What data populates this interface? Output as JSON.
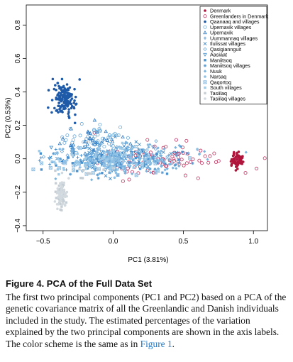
{
  "chart_data": {
    "type": "scatter",
    "xlabel": "PC1 (3.81%)",
    "ylabel": "PC2 (0.53%)",
    "xlim": [
      -0.62,
      1.1
    ],
    "ylim": [
      -0.43,
      0.92
    ],
    "xticks": [
      -0.5,
      0.0,
      0.5,
      1.0
    ],
    "xtick_labels": [
      "−0.5",
      "0.0",
      "0.5",
      "1.0"
    ],
    "yticks": [
      -0.4,
      -0.2,
      0.0,
      0.2,
      0.4,
      0.6,
      0.8
    ],
    "ytick_labels": [
      "−0.4",
      "−0.2",
      "0.0",
      "0.2",
      "0.4",
      "0.6",
      "0.8"
    ],
    "grid": false,
    "legend_position": "top-right",
    "series": [
      {
        "name": "Denmark",
        "marker": "dot",
        "color": "#b0153b",
        "clusters": [
          {
            "cx": 0.88,
            "cy": -0.01,
            "sx": 0.025,
            "sy": 0.022,
            "n": 70
          }
        ]
      },
      {
        "name": "Greenlanders in Denmark",
        "marker": "circle",
        "color": "#c2305e",
        "clusters": [
          {
            "cx": 0.35,
            "cy": 0.0,
            "sx": 0.28,
            "sy": 0.05,
            "n": 85
          }
        ]
      },
      {
        "name": "Qaanaaq and villages",
        "marker": "dot",
        "color": "#1e5aa8",
        "clusters": [
          {
            "cx": -0.35,
            "cy": 0.36,
            "sx": 0.045,
            "sy": 0.05,
            "n": 150
          }
        ]
      },
      {
        "name": "Upernavik villages",
        "marker": "circle",
        "color": "#6aaad8",
        "clusters": [
          {
            "cx": -0.15,
            "cy": 0.13,
            "sx": 0.12,
            "sy": 0.035,
            "n": 50
          }
        ]
      },
      {
        "name": "Upernavik",
        "marker": "triangle",
        "color": "#2f78c0",
        "clusters": [
          {
            "cx": -0.15,
            "cy": 0.12,
            "sx": 0.1,
            "sy": 0.04,
            "n": 30
          }
        ]
      },
      {
        "name": "Uummannaq villages",
        "marker": "plus",
        "color": "#3d86c8",
        "clusters": [
          {
            "cx": -0.05,
            "cy": 0.02,
            "sx": 0.2,
            "sy": 0.05,
            "n": 60
          }
        ]
      },
      {
        "name": "Ilulissat villages",
        "marker": "cross",
        "color": "#2f7fc4",
        "clusters": [
          {
            "cx": -0.05,
            "cy": 0.01,
            "sx": 0.22,
            "sy": 0.05,
            "n": 60
          }
        ]
      },
      {
        "name": "Qasigiannguit",
        "marker": "diamond",
        "color": "#6aa6d8",
        "clusters": [
          {
            "cx": 0.0,
            "cy": 0.0,
            "sx": 0.2,
            "sy": 0.04,
            "n": 40
          }
        ]
      },
      {
        "name": "Aasiaat",
        "marker": "triangle-down",
        "color": "#3a88c9",
        "clusters": [
          {
            "cx": 0.0,
            "cy": 0.0,
            "sx": 0.22,
            "sy": 0.04,
            "n": 40
          }
        ]
      },
      {
        "name": "Maniitsoq",
        "marker": "square",
        "color": "#4a92cf",
        "clusters": [
          {
            "cx": 0.05,
            "cy": -0.02,
            "sx": 0.22,
            "sy": 0.04,
            "n": 50
          }
        ]
      },
      {
        "name": "Maniitsoq villages",
        "marker": "asterisk",
        "color": "#5a9dd3",
        "clusters": [
          {
            "cx": 0.0,
            "cy": -0.02,
            "sx": 0.22,
            "sy": 0.04,
            "n": 50
          }
        ]
      },
      {
        "name": "Nuuk",
        "marker": "diamond-fill",
        "color": "#7ab4de",
        "clusters": [
          {
            "cx": 0.15,
            "cy": 0.0,
            "sx": 0.25,
            "sy": 0.045,
            "n": 110
          }
        ]
      },
      {
        "name": "Narsaq",
        "marker": "dot",
        "color": "#8ec0e4",
        "clusters": [
          {
            "cx": 0.0,
            "cy": 0.0,
            "sx": 0.22,
            "sy": 0.04,
            "n": 50
          }
        ]
      },
      {
        "name": "Qaqortoq",
        "marker": "boxed-cross",
        "color": "#8fbfe2",
        "clusters": [
          {
            "cx": 0.0,
            "cy": -0.02,
            "sx": 0.22,
            "sy": 0.04,
            "n": 50
          }
        ]
      },
      {
        "name": "South villages",
        "marker": "square",
        "color": "#9ecbe8",
        "clusters": [
          {
            "cx": -0.1,
            "cy": -0.02,
            "sx": 0.2,
            "sy": 0.04,
            "n": 50
          }
        ]
      },
      {
        "name": "Tasiilaq",
        "marker": "square",
        "color": "#c5ced4",
        "clusters": [
          {
            "cx": -0.37,
            "cy": -0.22,
            "sx": 0.02,
            "sy": 0.045,
            "n": 45
          },
          {
            "cx": -0.1,
            "cy": -0.07,
            "sx": 0.1,
            "sy": 0.03,
            "n": 12
          }
        ]
      },
      {
        "name": "Tasiilaq villages",
        "marker": "dot",
        "color": "#d2dadf",
        "clusters": [
          {
            "cx": -0.37,
            "cy": -0.22,
            "sx": 0.02,
            "sy": 0.045,
            "n": 45
          }
        ]
      }
    ]
  },
  "caption": {
    "title": "Figure 4.   PCA of the Full Data Set",
    "body": "The first two principal components (PC1 and PC2) based on a PCA of the genetic covariance matrix of all the Greenlandic and Danish individuals included in the study. The estimated percentages of the variation explained by the two principal components are shown in the axis labels. The color scheme is the same as in ",
    "link": "Figure 1",
    "end": "."
  }
}
